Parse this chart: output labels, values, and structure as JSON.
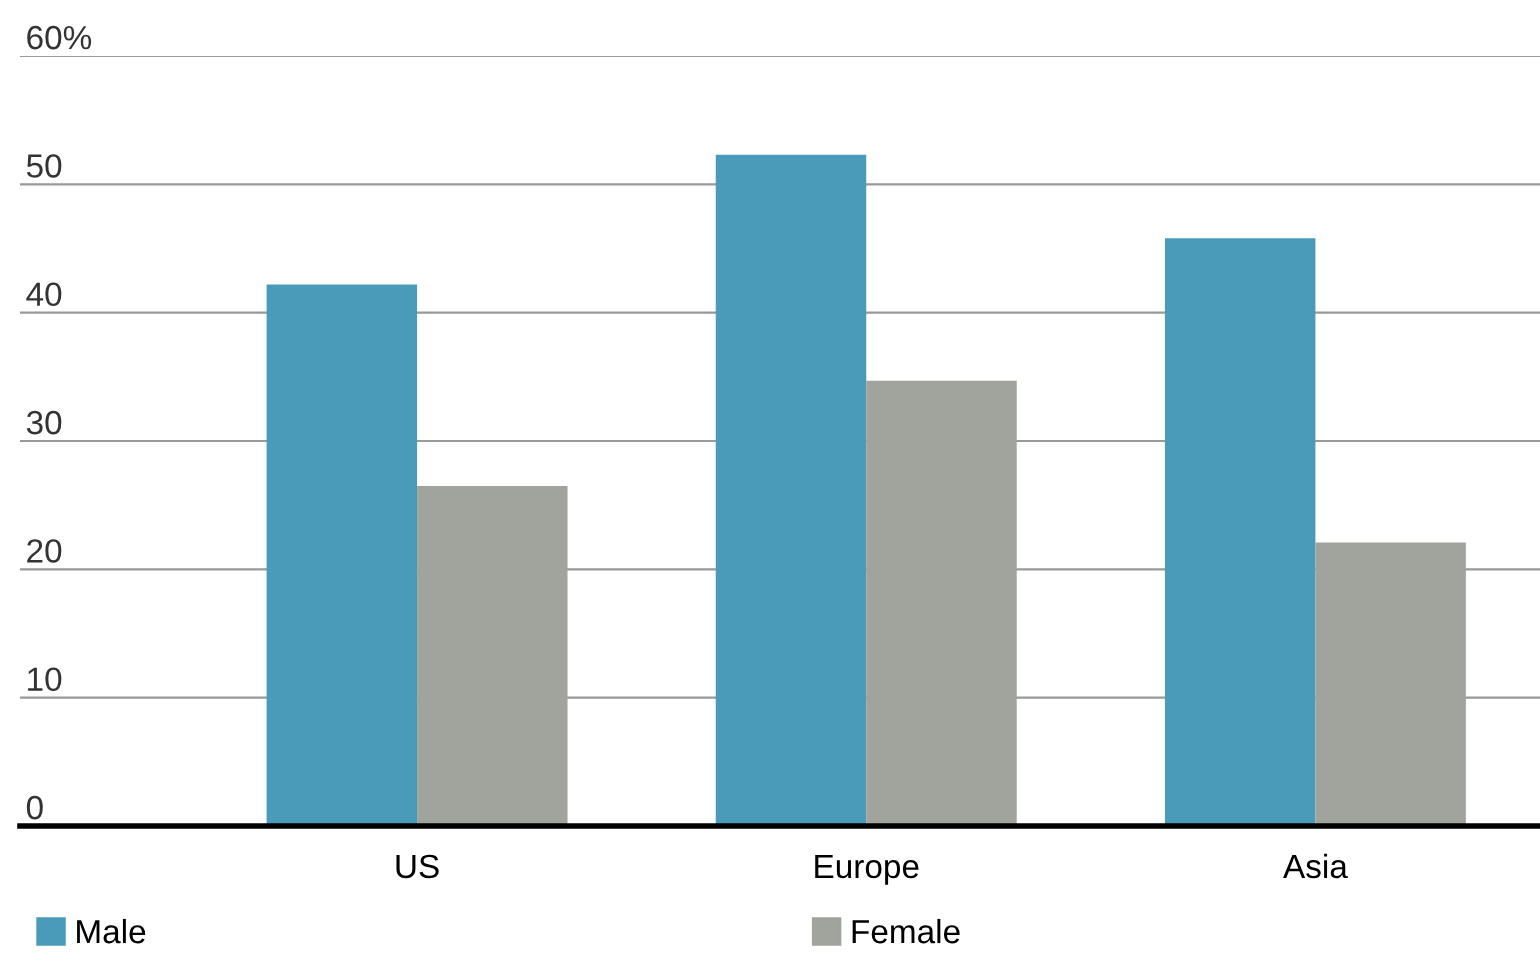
{
  "chart_data": {
    "type": "bar",
    "categories": [
      "US",
      "Europe",
      "Asia"
    ],
    "series": [
      {
        "name": "Male",
        "color": "#4a9bba",
        "values": [
          42.2,
          52.3,
          45.8
        ]
      },
      {
        "name": "Female",
        "color": "#a0a49c",
        "values": [
          26.5,
          34.7,
          22.1
        ]
      }
    ],
    "ylim": [
      0,
      60
    ],
    "yticks": [
      0,
      10,
      20,
      30,
      40,
      50,
      {
        "value": 60,
        "label": "60%"
      }
    ],
    "grid": "y",
    "legend": "bottom left"
  }
}
